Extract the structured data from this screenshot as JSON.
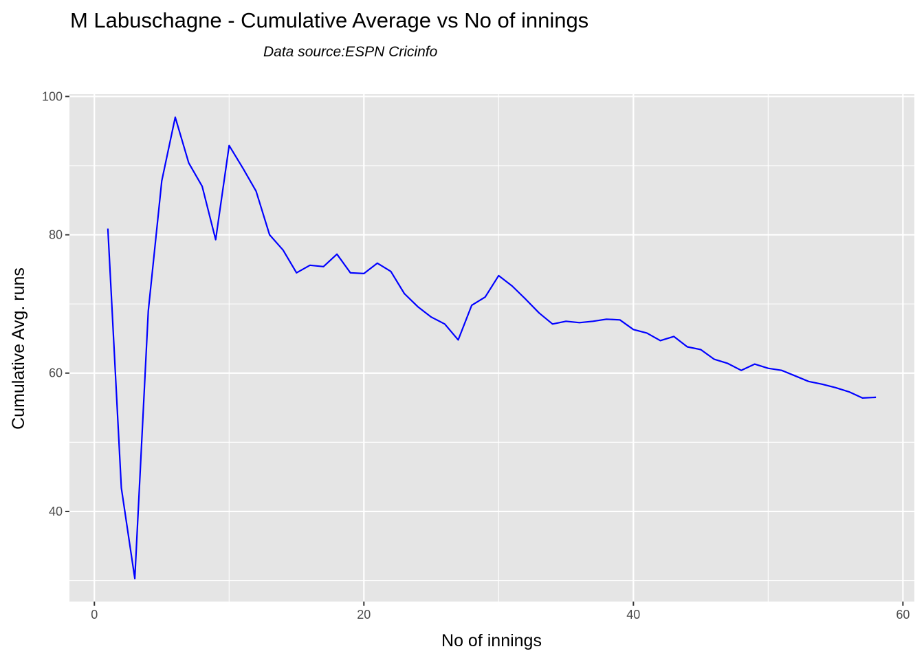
{
  "chart_data": {
    "type": "line",
    "title": "M Labuschagne - Cumulative Average vs No of innings",
    "subtitle": "Data source:ESPN Cricinfo",
    "xlabel": "No of innings",
    "ylabel": "Cumulative Avg. runs",
    "xlim": [
      -1.85,
      60.85
    ],
    "ylim": [
      26.97,
      100.33
    ],
    "xticks": [
      0,
      20,
      40,
      60
    ],
    "yticks": [
      40,
      60,
      80,
      100
    ],
    "xminor": [
      10,
      30,
      50
    ],
    "yminor": [
      30,
      50,
      70,
      90
    ],
    "grid": true,
    "legend": "none",
    "colors": {
      "line": "#0000FF",
      "panel": "#E5E5E5",
      "grid": "#FFFFFF"
    },
    "x": [
      1,
      2,
      3,
      4,
      5,
      6,
      7,
      8,
      9,
      10,
      11,
      12,
      13,
      14,
      15,
      16,
      17,
      18,
      19,
      20,
      21,
      22,
      23,
      24,
      25,
      26,
      27,
      28,
      29,
      30,
      31,
      32,
      33,
      34,
      35,
      36,
      37,
      38,
      39,
      40,
      41,
      42,
      43,
      44,
      45,
      46,
      47,
      48,
      49,
      50,
      51,
      52,
      53,
      54,
      55,
      56,
      57,
      58
    ],
    "y": [
      80.9,
      43.4,
      30.3,
      69.0,
      87.8,
      97.0,
      90.4,
      87.0,
      79.3,
      92.9,
      89.7,
      86.3,
      80.0,
      77.8,
      74.5,
      75.6,
      75.4,
      77.2,
      74.5,
      74.4,
      75.9,
      74.7,
      71.5,
      69.6,
      68.1,
      67.1,
      64.8,
      69.8,
      71.0,
      74.1,
      72.6,
      70.7,
      68.7,
      67.1,
      67.5,
      67.3,
      67.5,
      67.8,
      67.7,
      66.3,
      65.8,
      64.7,
      65.3,
      63.8,
      63.4,
      62.0,
      61.4,
      60.4,
      61.3,
      60.7,
      60.4,
      59.6,
      58.8,
      58.4,
      57.9,
      57.3,
      56.4,
      56.5
    ]
  }
}
